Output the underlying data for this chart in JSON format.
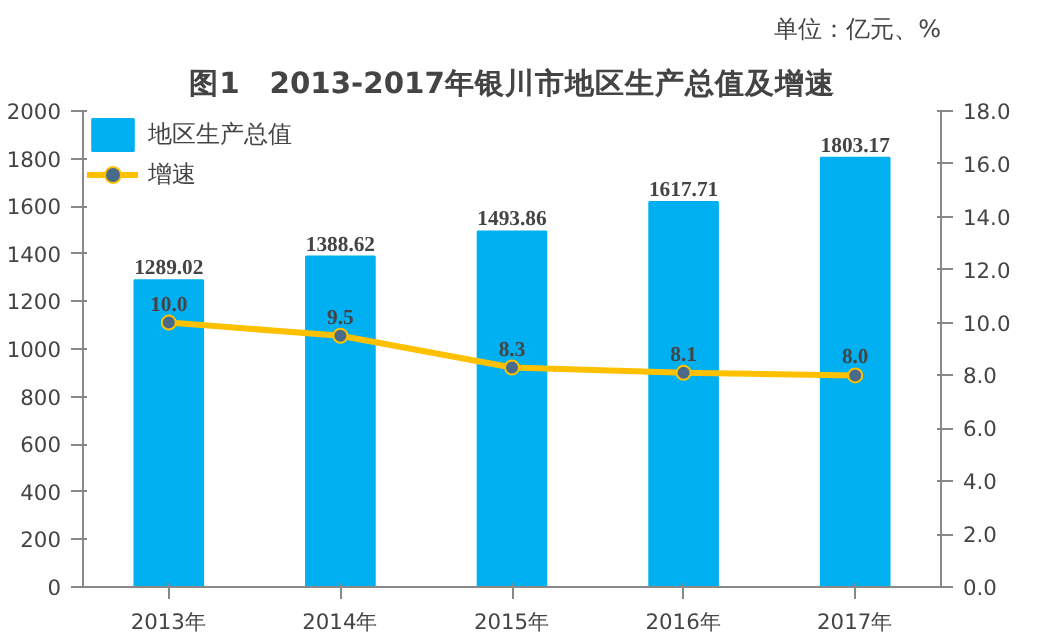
{
  "chart_data": {
    "type": "bar",
    "title": "图1　2013-2017年银川市地区生产总值及增速",
    "annotations": [
      "单位：亿元、%"
    ],
    "categories": [
      "2013年",
      "2014年",
      "2015年",
      "2016年",
      "2017年"
    ],
    "series": [
      {
        "name": "地区生产总值",
        "color": "#00b0f0",
        "values": [
          1289.02,
          1388.62,
          1493.86,
          1617.71,
          1803.17
        ],
        "value_labels": [
          "1289.02",
          "1388.62",
          "1493.86",
          "1617.71",
          "1803.17"
        ]
      },
      {
        "name": "增速",
        "type": "line",
        "axis": "y2",
        "color": "#ffc000",
        "marker": "circle",
        "values": [
          10.0,
          9.5,
          8.3,
          8.1,
          8.0
        ],
        "value_labels": [
          "10.0",
          "9.5",
          "8.3",
          "8.1",
          "8.0"
        ]
      }
    ],
    "ylim": [
      0,
      2000
    ],
    "yticks": [
      0,
      200,
      400,
      600,
      800,
      1000,
      1200,
      1400,
      1600,
      1800,
      2000
    ],
    "y2lim": [
      0,
      18
    ],
    "y2ticks": [
      {
        "value": 0,
        "label": "0.0"
      },
      {
        "value": 2,
        "label": "2.0"
      },
      {
        "value": 4,
        "label": "4.0"
      },
      {
        "value": 6,
        "label": "6.0"
      },
      {
        "value": 8,
        "label": "8.0"
      },
      {
        "value": 10,
        "label": "10.0"
      },
      {
        "value": 12,
        "label": "12.0"
      },
      {
        "value": 14,
        "label": "14.0"
      },
      {
        "value": 16,
        "label": "16.0"
      },
      {
        "value": 18,
        "label": "18.0"
      }
    ],
    "legend": "top left",
    "grid": false
  }
}
